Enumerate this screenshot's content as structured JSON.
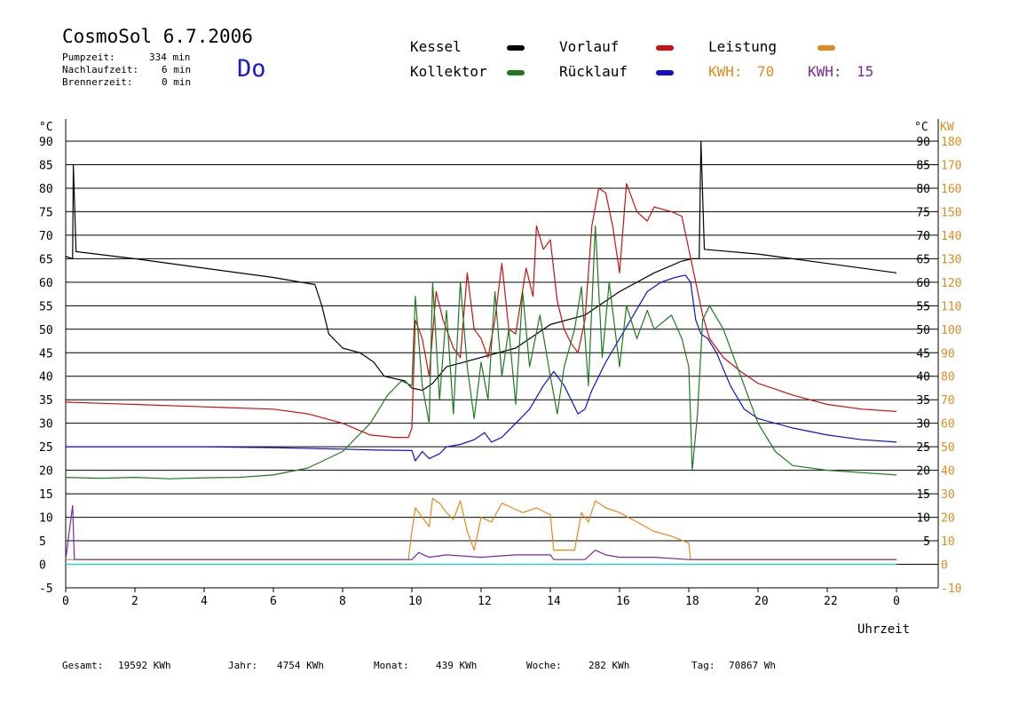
{
  "header": {
    "title": "CosmoSol 6.7.2006",
    "day": "Do",
    "stats": [
      {
        "label": "Pumpzeit:",
        "value": "334 min"
      },
      {
        "label": "Nachlaufzeit:",
        "value": "6 min"
      },
      {
        "label": "Brennerzeit:",
        "value": "0 min"
      }
    ]
  },
  "legend": {
    "kessel": "Kessel",
    "kollektor": "Kollektor",
    "vorlauf": "Vorlauf",
    "ruecklauf": "Rücklauf",
    "leistung": "Leistung",
    "kwh1_label": "KWH:",
    "kwh1_value": "70",
    "kwh2_label": "KWH:",
    "kwh2_value": "15"
  },
  "colors": {
    "kessel": "#000000",
    "kollektor": "#1f7a1f",
    "vorlauf": "#cc1111",
    "ruecklauf": "#1111cc",
    "leistung": "#e08a1e",
    "kwh2": "#7a2a9a",
    "baseline": "#33cccc"
  },
  "footer": {
    "gesamt_label": "Gesamt:",
    "gesamt_value": "19592 KWh",
    "jahr_label": "Jahr:",
    "jahr_value": "4754 KWh",
    "monat_label": "Monat:",
    "monat_value": "439 KWh",
    "woche_label": "Woche:",
    "woche_value": "282 KWh",
    "tag_label": "Tag:",
    "tag_value": "70867 Wh"
  },
  "chart_data": {
    "type": "line",
    "xlabel": "Uhrzeit",
    "ylabel_left": "°C",
    "ylabel_right_c": "°C",
    "ylabel_right_kw": "KW",
    "xlim": [
      0,
      24
    ],
    "ylim": [
      -5,
      90
    ],
    "ylim_kw": [
      -10,
      180
    ],
    "x_ticks": [
      "0",
      "2",
      "4",
      "6",
      "8",
      "10",
      "12",
      "14",
      "16",
      "18",
      "20",
      "22",
      "0"
    ],
    "y_ticks": [
      90,
      85,
      80,
      75,
      70,
      65,
      60,
      55,
      50,
      45,
      40,
      35,
      30,
      25,
      20,
      15,
      10,
      5,
      0,
      -5
    ],
    "y_ticks_right": [
      90,
      85,
      80,
      75,
      70,
      65,
      60,
      55,
      50,
      45,
      40,
      35,
      30,
      25,
      20,
      15,
      10,
      5
    ],
    "kw_ticks": [
      180,
      170,
      160,
      150,
      140,
      130,
      120,
      110,
      100,
      90,
      80,
      70,
      60,
      50,
      40,
      30,
      20,
      10,
      0,
      -10
    ],
    "grid": true,
    "series": [
      {
        "name": "Kessel",
        "points": [
          [
            0,
            65.5
          ],
          [
            0.2,
            65
          ],
          [
            0.22,
            85
          ],
          [
            0.3,
            66.5
          ],
          [
            2,
            65
          ],
          [
            4,
            63
          ],
          [
            6,
            61
          ],
          [
            7.2,
            59.5
          ],
          [
            7.4,
            55
          ],
          [
            7.6,
            49
          ],
          [
            8,
            46
          ],
          [
            8.5,
            45
          ],
          [
            8.9,
            43
          ],
          [
            9.2,
            40
          ],
          [
            9.8,
            39
          ],
          [
            10,
            37.5
          ],
          [
            10.3,
            37
          ],
          [
            10.6,
            38.5
          ],
          [
            11,
            42
          ],
          [
            11.5,
            43
          ],
          [
            12,
            44
          ],
          [
            13,
            46
          ],
          [
            14,
            51
          ],
          [
            15,
            53
          ],
          [
            16,
            58
          ],
          [
            17,
            62
          ],
          [
            17.8,
            64.5
          ],
          [
            18.1,
            65
          ],
          [
            18.3,
            65
          ],
          [
            18.35,
            90
          ],
          [
            18.45,
            67
          ],
          [
            20,
            66
          ],
          [
            22,
            64
          ],
          [
            24,
            62
          ]
        ]
      },
      {
        "name": "Vorlauf",
        "points": [
          [
            0,
            34.5
          ],
          [
            2,
            34
          ],
          [
            4,
            33.5
          ],
          [
            6,
            33
          ],
          [
            7,
            32
          ],
          [
            8,
            30
          ],
          [
            8.8,
            27.5
          ],
          [
            9.5,
            27
          ],
          [
            9.9,
            27
          ],
          [
            10,
            29
          ],
          [
            10.1,
            52
          ],
          [
            10.3,
            48
          ],
          [
            10.5,
            40
          ],
          [
            10.7,
            58
          ],
          [
            10.9,
            52
          ],
          [
            11,
            50
          ],
          [
            11.2,
            46
          ],
          [
            11.4,
            44
          ],
          [
            11.6,
            62
          ],
          [
            11.8,
            50
          ],
          [
            12,
            48
          ],
          [
            12.2,
            44
          ],
          [
            12.4,
            52
          ],
          [
            12.6,
            64
          ],
          [
            12.8,
            50
          ],
          [
            13,
            49
          ],
          [
            13.3,
            63
          ],
          [
            13.5,
            57
          ],
          [
            13.6,
            72
          ],
          [
            13.8,
            67
          ],
          [
            14,
            69
          ],
          [
            14.2,
            56
          ],
          [
            14.4,
            50
          ],
          [
            14.6,
            47
          ],
          [
            14.8,
            45
          ],
          [
            15,
            52
          ],
          [
            15.2,
            72
          ],
          [
            15.4,
            80
          ],
          [
            15.6,
            79
          ],
          [
            15.8,
            72
          ],
          [
            16,
            62
          ],
          [
            16.2,
            81
          ],
          [
            16.5,
            75
          ],
          [
            16.8,
            73
          ],
          [
            17,
            76
          ],
          [
            17.5,
            75
          ],
          [
            17.8,
            74
          ],
          [
            18,
            67
          ],
          [
            18.2,
            60
          ],
          [
            18.4,
            53
          ],
          [
            18.6,
            48
          ],
          [
            19,
            44
          ],
          [
            19.5,
            41
          ],
          [
            20,
            38.5
          ],
          [
            21,
            36
          ],
          [
            22,
            34
          ],
          [
            23,
            33
          ],
          [
            24,
            32.5
          ]
        ]
      },
      {
        "name": "Rücklauf",
        "points": [
          [
            0,
            25
          ],
          [
            2,
            25
          ],
          [
            4,
            25
          ],
          [
            6,
            24.8
          ],
          [
            8,
            24.5
          ],
          [
            9,
            24.3
          ],
          [
            10,
            24.2
          ],
          [
            10.1,
            22
          ],
          [
            10.3,
            24
          ],
          [
            10.5,
            22.5
          ],
          [
            10.8,
            23.5
          ],
          [
            11,
            25
          ],
          [
            11.4,
            25.5
          ],
          [
            11.8,
            26.5
          ],
          [
            12.1,
            28
          ],
          [
            12.3,
            26
          ],
          [
            12.6,
            27
          ],
          [
            13,
            30
          ],
          [
            13.4,
            33
          ],
          [
            13.8,
            38
          ],
          [
            14.1,
            41
          ],
          [
            14.4,
            38
          ],
          [
            14.8,
            32
          ],
          [
            15,
            33
          ],
          [
            15.2,
            37
          ],
          [
            15.6,
            43
          ],
          [
            16,
            48
          ],
          [
            16.4,
            53
          ],
          [
            16.8,
            58
          ],
          [
            17.2,
            60
          ],
          [
            17.6,
            61
          ],
          [
            17.9,
            61.5
          ],
          [
            18.05,
            60
          ],
          [
            18.2,
            52
          ],
          [
            18.35,
            49
          ],
          [
            18.55,
            48
          ],
          [
            18.8,
            45
          ],
          [
            19.2,
            38
          ],
          [
            19.6,
            33
          ],
          [
            20,
            31
          ],
          [
            21,
            29
          ],
          [
            22,
            27.5
          ],
          [
            23,
            26.5
          ],
          [
            24,
            26
          ]
        ]
      },
      {
        "name": "Kollektor",
        "points": [
          [
            0,
            18.5
          ],
          [
            1,
            18.3
          ],
          [
            2,
            18.5
          ],
          [
            3,
            18.2
          ],
          [
            4,
            18.4
          ],
          [
            5,
            18.5
          ],
          [
            6,
            19
          ],
          [
            7,
            20.5
          ],
          [
            8,
            24
          ],
          [
            8.8,
            30
          ],
          [
            9.3,
            36
          ],
          [
            9.7,
            39
          ],
          [
            10,
            38
          ],
          [
            10.1,
            57
          ],
          [
            10.3,
            38
          ],
          [
            10.5,
            30
          ],
          [
            10.6,
            60
          ],
          [
            10.8,
            35
          ],
          [
            11,
            54
          ],
          [
            11.2,
            32
          ],
          [
            11.4,
            60
          ],
          [
            11.6,
            42
          ],
          [
            11.8,
            31
          ],
          [
            12,
            43
          ],
          [
            12.2,
            35
          ],
          [
            12.4,
            58
          ],
          [
            12.6,
            40
          ],
          [
            12.8,
            50
          ],
          [
            13,
            34
          ],
          [
            13.2,
            58
          ],
          [
            13.4,
            42
          ],
          [
            13.7,
            53
          ],
          [
            14,
            40
          ],
          [
            14.2,
            32
          ],
          [
            14.4,
            42
          ],
          [
            14.7,
            50
          ],
          [
            14.9,
            59
          ],
          [
            15.1,
            38
          ],
          [
            15.3,
            72
          ],
          [
            15.5,
            44
          ],
          [
            15.7,
            60
          ],
          [
            16,
            42
          ],
          [
            16.2,
            55
          ],
          [
            16.5,
            48
          ],
          [
            16.8,
            54
          ],
          [
            17,
            50
          ],
          [
            17.5,
            53
          ],
          [
            17.8,
            48
          ],
          [
            18,
            42
          ],
          [
            18.1,
            20
          ],
          [
            18.25,
            32
          ],
          [
            18.4,
            52
          ],
          [
            18.6,
            55
          ],
          [
            19,
            50
          ],
          [
            19.5,
            40
          ],
          [
            20,
            30
          ],
          [
            20.5,
            24
          ],
          [
            21,
            21
          ],
          [
            22,
            20
          ],
          [
            23,
            19.5
          ],
          [
            24,
            19
          ]
        ]
      },
      {
        "name": "Leistung",
        "axis": "kw",
        "points": [
          [
            0,
            2
          ],
          [
            9.9,
            2
          ],
          [
            10,
            14
          ],
          [
            10.1,
            24
          ],
          [
            10.3,
            20
          ],
          [
            10.5,
            16
          ],
          [
            10.6,
            28
          ],
          [
            10.8,
            26
          ],
          [
            11,
            22
          ],
          [
            11.2,
            19
          ],
          [
            11.4,
            27
          ],
          [
            11.6,
            14
          ],
          [
            11.8,
            6
          ],
          [
            12,
            20
          ],
          [
            12.3,
            18
          ],
          [
            12.6,
            26
          ],
          [
            12.9,
            24
          ],
          [
            13.2,
            22
          ],
          [
            13.6,
            24
          ],
          [
            14,
            21
          ],
          [
            14.1,
            6
          ],
          [
            14.7,
            6
          ],
          [
            14.9,
            22
          ],
          [
            15.1,
            18
          ],
          [
            15.3,
            27
          ],
          [
            15.6,
            24
          ],
          [
            16,
            22
          ],
          [
            16.5,
            18
          ],
          [
            17,
            14
          ],
          [
            17.5,
            12
          ],
          [
            18,
            9
          ],
          [
            18.05,
            2
          ],
          [
            24,
            2
          ]
        ]
      },
      {
        "name": "KWH 15",
        "axis": "kw",
        "points": [
          [
            0,
            2
          ],
          [
            0.2,
            25
          ],
          [
            0.25,
            2
          ],
          [
            10,
            2
          ],
          [
            10.2,
            5
          ],
          [
            10.5,
            3
          ],
          [
            11,
            4
          ],
          [
            12,
            3
          ],
          [
            13,
            4
          ],
          [
            14,
            4
          ],
          [
            14.1,
            2
          ],
          [
            15,
            2
          ],
          [
            15.3,
            6
          ],
          [
            15.6,
            4
          ],
          [
            16,
            3
          ],
          [
            17,
            3
          ],
          [
            18,
            2
          ],
          [
            24,
            2
          ]
        ]
      }
    ]
  }
}
